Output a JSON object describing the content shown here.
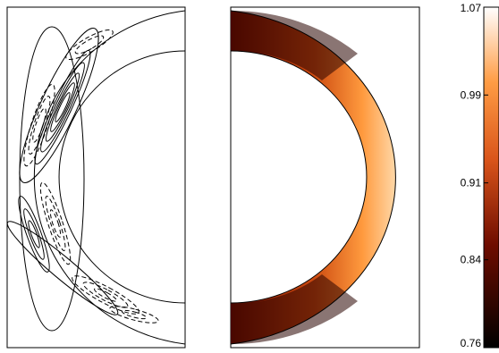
{
  "chart_data": [
    {
      "type": "contour",
      "panel": "left",
      "title": "",
      "levels_positive_shown": "solid",
      "levels_negative_shown": "dashed",
      "shell": {
        "inner_radius_fraction": 0.6,
        "half": "left"
      }
    },
    {
      "type": "heatmap",
      "panel": "right",
      "title": "",
      "shell": {
        "inner_radius_fraction": 0.6,
        "half": "right"
      },
      "colormap": "gist_heat",
      "colorbar": {
        "range": [
          0.76,
          1.07
        ],
        "ticks": [
          "1.07",
          "0.99",
          "0.91",
          "0.84",
          "0.76"
        ]
      },
      "field_description_values": {
        "min_location": "poles",
        "max_location": "equator"
      }
    }
  ]
}
